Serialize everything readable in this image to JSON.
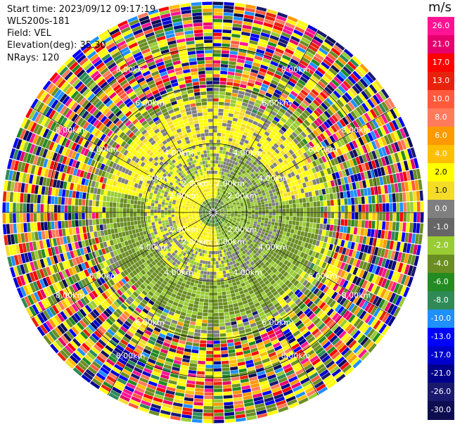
{
  "meta": {
    "start_time": "Start time: 2023/09/12 09:17:19",
    "instrument": "WLS200s-181",
    "field": "Field: VEL",
    "elevation": "Elevation(deg): 35.30",
    "nrays": "NRays: 120"
  },
  "colorbar": {
    "unit": "m/s",
    "ticks": [
      "26.0",
      "21.0",
      "17.0",
      "13.0",
      "10.0",
      "8.0",
      "6.0",
      "4.0",
      "2.0",
      "1.0",
      "0.0",
      "-1.0",
      "-2.0",
      "-4.0",
      "-6.0",
      "-8.0",
      "-10.0",
      "-13.0",
      "-17.0",
      "-21.0",
      "-26.0",
      "-30.0"
    ],
    "colors": [
      "#ff1493",
      "#e6006e",
      "#ff0000",
      "#e8220a",
      "#ff5a3c",
      "#ff7b5c",
      "#ff9900",
      "#ffbf00",
      "#ffff00",
      "#f5dc28",
      "#7f7f7f",
      "#666666",
      "#99cc33",
      "#6b8e23",
      "#228b22",
      "#2e8b57",
      "#1e90ff",
      "#0000ff",
      "#0000cd",
      "#00008b",
      "#191970",
      "#0d0d50"
    ]
  },
  "rings": [
    {
      "label": "2.00km"
    },
    {
      "label": "4.00km"
    },
    {
      "label": "6.00km"
    },
    {
      "label": "8.00km"
    }
  ]
}
